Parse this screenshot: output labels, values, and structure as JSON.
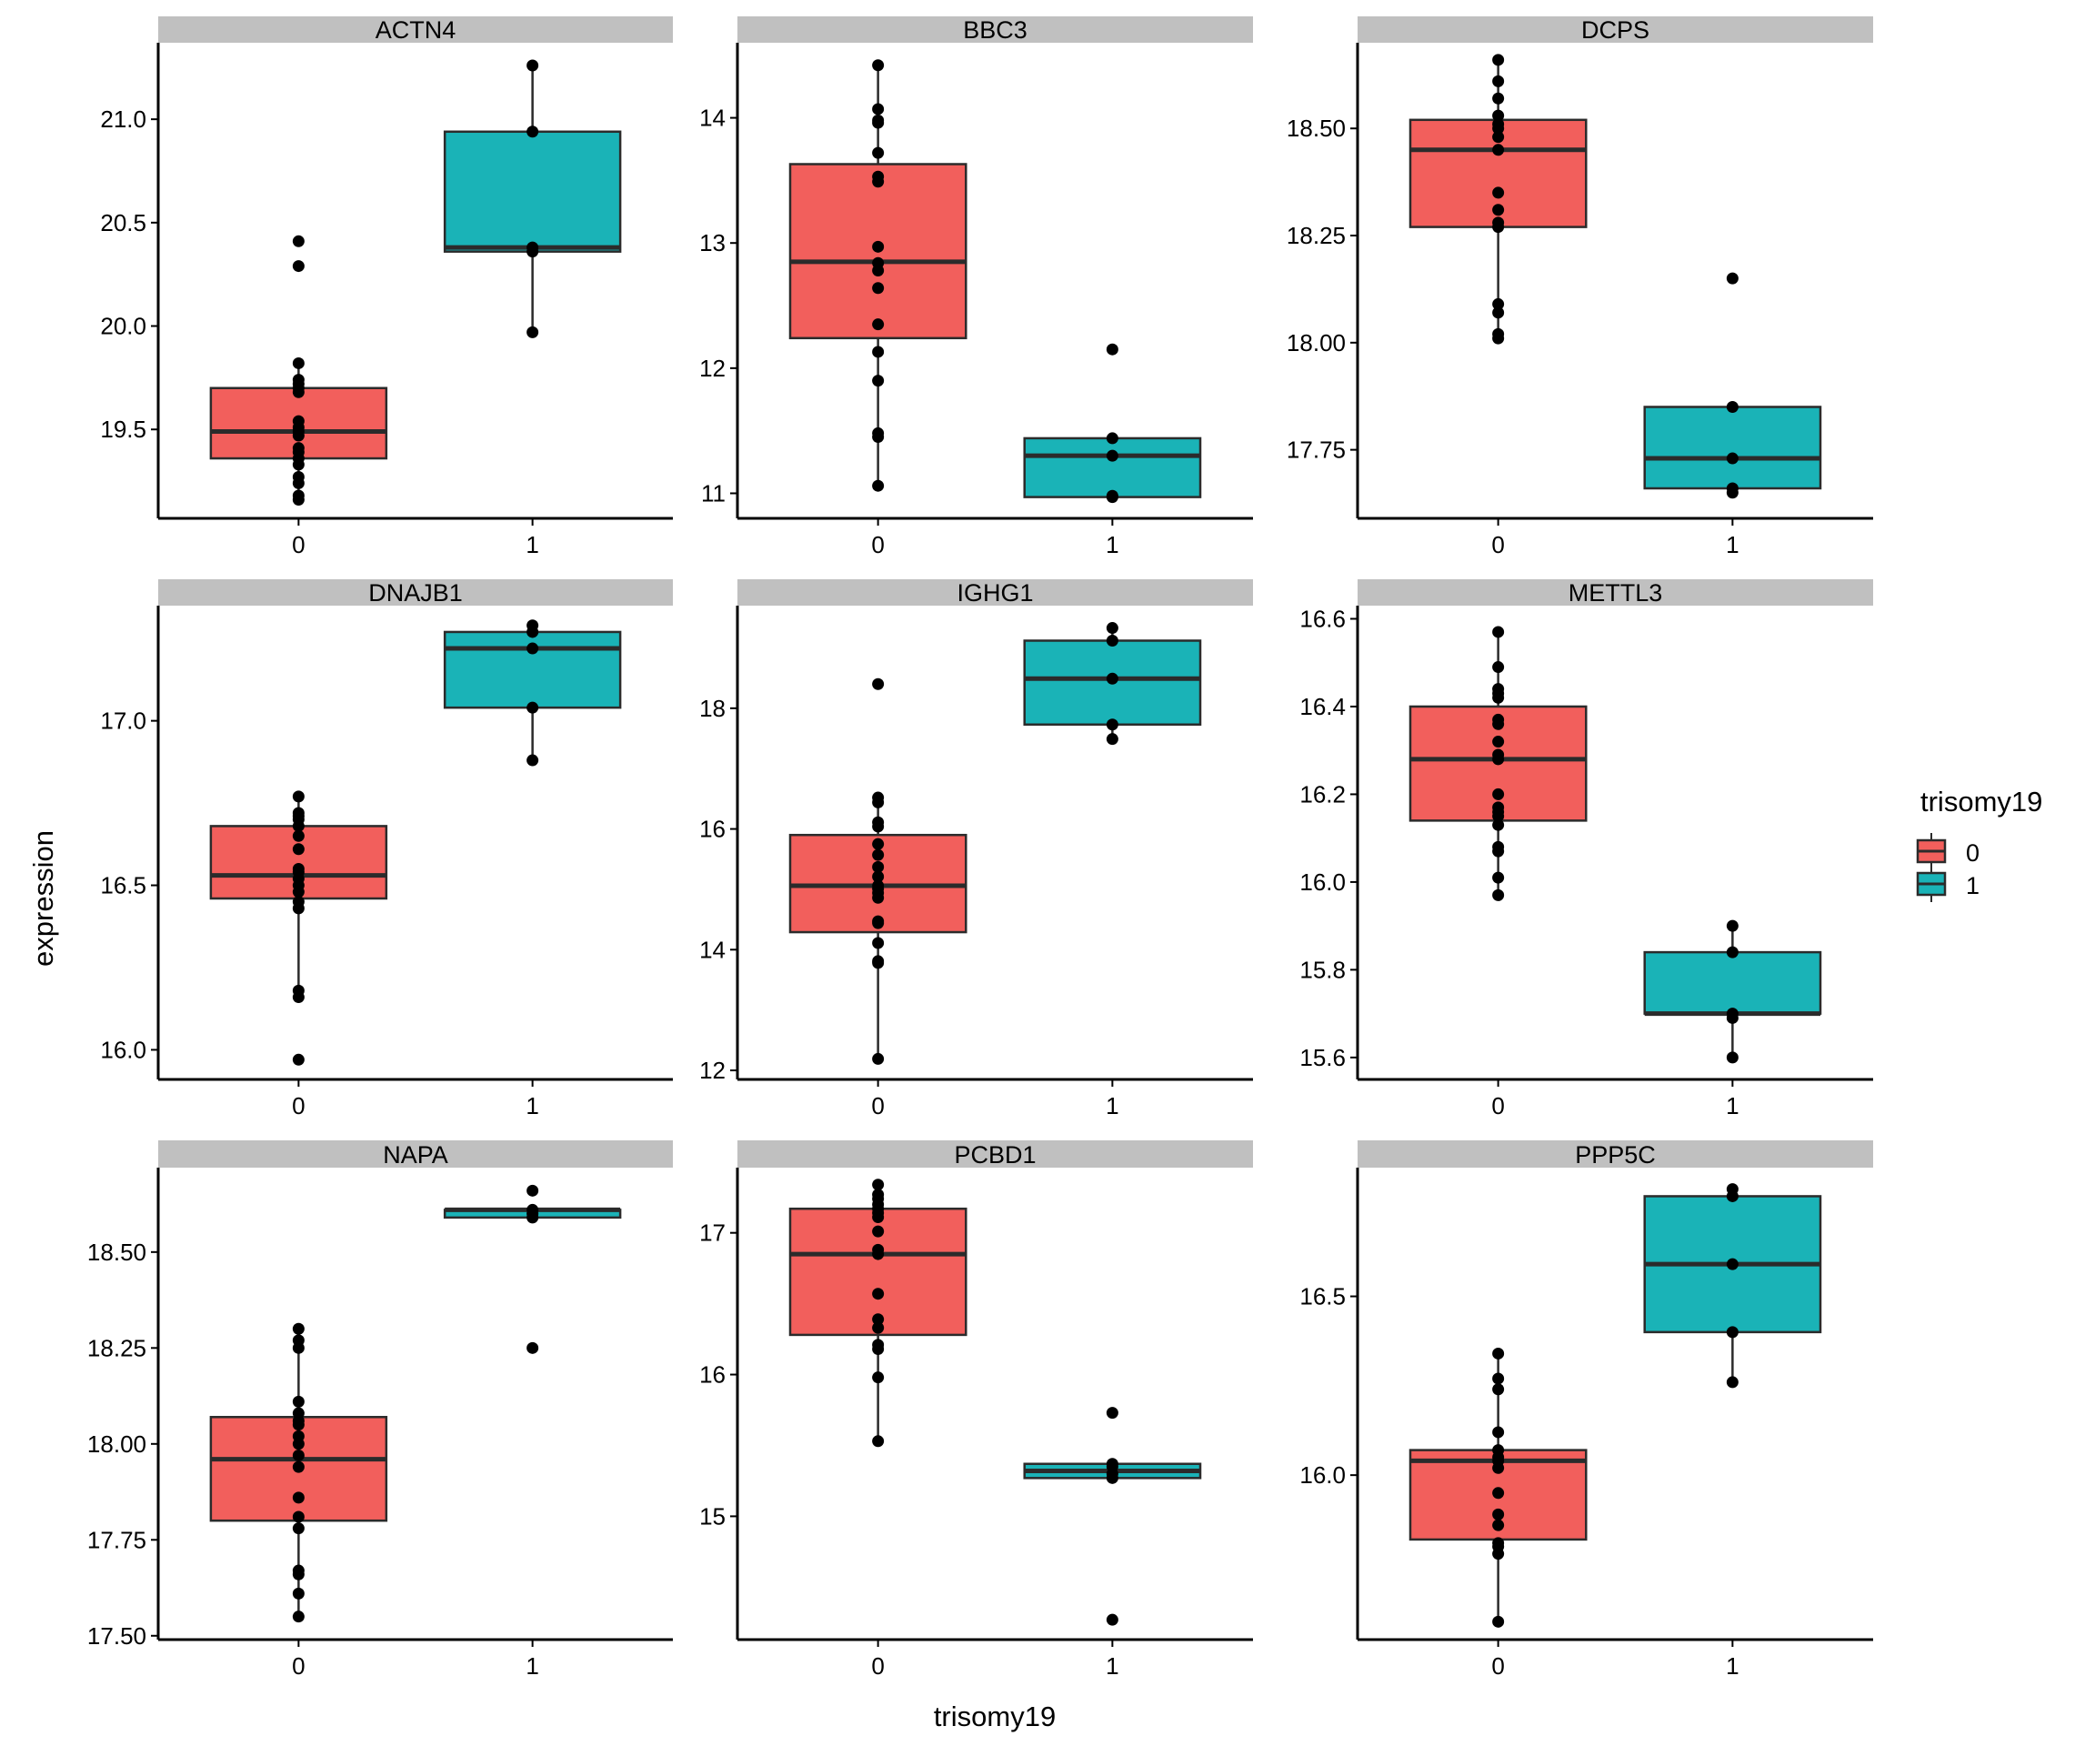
{
  "chart_data": {
    "type": "boxplot",
    "xlabel": "trisomy19",
    "ylabel": "expression",
    "categories": [
      "0",
      "1"
    ],
    "legend": {
      "title": "trisomy19",
      "placement": "right",
      "entries": [
        {
          "label": "0",
          "color": "#F8766D"
        },
        {
          "label": "1",
          "color": "#00BFC4"
        }
      ]
    },
    "colors": {
      "group0": "#F25F5C",
      "group1": "#1AB3B7",
      "outline": "#2B2B2B",
      "strip": "#C0C0C0",
      "point": "#000000"
    },
    "panels": [
      {
        "title": "ACTN4",
        "ylim": [
          19.07,
          21.37
        ],
        "yticks": [
          19.5,
          20.0,
          20.5,
          21.0
        ],
        "ytick_labels": [
          "19.5",
          "20.0",
          "20.5",
          "21.0"
        ],
        "groups": [
          {
            "category": "0",
            "box": {
              "lower_whisker": 19.16,
              "q1": 19.36,
              "median": 19.49,
              "q3": 19.7,
              "upper_whisker": 19.82
            },
            "points": [
              19.16,
              19.18,
              19.24,
              19.27,
              19.33,
              19.36,
              19.39,
              19.41,
              19.47,
              19.49,
              19.51,
              19.54,
              19.68,
              19.7,
              19.72,
              19.74,
              19.82,
              20.29,
              20.41
            ]
          },
          {
            "category": "1",
            "box": {
              "lower_whisker": 19.97,
              "q1": 20.36,
              "median": 20.38,
              "q3": 20.94,
              "upper_whisker": 21.26
            },
            "points": [
              19.97,
              20.36,
              20.38,
              20.94,
              21.26
            ]
          }
        ]
      },
      {
        "title": "BBC3",
        "ylim": [
          10.8,
          14.6
        ],
        "yticks": [
          11,
          12,
          13,
          14
        ],
        "ytick_labels": [
          "11",
          "12",
          "13",
          "14"
        ],
        "groups": [
          {
            "category": "0",
            "box": {
              "lower_whisker": 11.06,
              "q1": 12.24,
              "median": 12.85,
              "q3": 13.63,
              "upper_whisker": 14.42
            },
            "points": [
              11.06,
              11.45,
              11.48,
              11.9,
              12.13,
              12.35,
              12.64,
              12.78,
              12.84,
              12.97,
              13.49,
              13.53,
              13.72,
              13.96,
              13.98,
              14.07,
              14.42
            ]
          },
          {
            "category": "1",
            "box": {
              "lower_whisker": 10.97,
              "q1": 10.97,
              "median": 11.3,
              "q3": 11.44,
              "upper_whisker": 11.44
            },
            "points": [
              10.97,
              10.98,
              11.3,
              11.44,
              12.15
            ]
          }
        ]
      },
      {
        "title": "DCPS",
        "ylim": [
          17.59,
          18.7
        ],
        "yticks": [
          17.75,
          18.0,
          18.25,
          18.5
        ],
        "ytick_labels": [
          "17.75",
          "18.00",
          "18.25",
          "18.50"
        ],
        "groups": [
          {
            "category": "0",
            "box": {
              "lower_whisker": 18.01,
              "q1": 18.27,
              "median": 18.45,
              "q3": 18.52,
              "upper_whisker": 18.66
            },
            "points": [
              18.01,
              18.02,
              18.07,
              18.09,
              18.27,
              18.28,
              18.31,
              18.35,
              18.45,
              18.48,
              18.5,
              18.51,
              18.53,
              18.57,
              18.61,
              18.66
            ]
          },
          {
            "category": "1",
            "box": {
              "lower_whisker": 17.66,
              "q1": 17.66,
              "median": 17.73,
              "q3": 17.85,
              "upper_whisker": 17.85
            },
            "points": [
              17.65,
              17.66,
              17.73,
              17.85,
              18.15
            ]
          }
        ]
      },
      {
        "title": "DNAJB1",
        "ylim": [
          15.91,
          17.35
        ],
        "yticks": [
          16.0,
          16.5,
          17.0
        ],
        "ytick_labels": [
          "16.0",
          "16.5",
          "17.0"
        ],
        "groups": [
          {
            "category": "0",
            "box": {
              "lower_whisker": 16.16,
              "q1": 16.46,
              "median": 16.53,
              "q3": 16.68,
              "upper_whisker": 16.77
            },
            "points": [
              15.97,
              16.16,
              16.18,
              16.43,
              16.45,
              16.48,
              16.5,
              16.52,
              16.54,
              16.55,
              16.61,
              16.65,
              16.68,
              16.7,
              16.71,
              16.72,
              16.77
            ]
          },
          {
            "category": "1",
            "box": {
              "lower_whisker": 16.88,
              "q1": 17.04,
              "median": 17.22,
              "q3": 17.27,
              "upper_whisker": 17.29
            },
            "points": [
              16.88,
              17.04,
              17.22,
              17.27,
              17.29
            ]
          }
        ]
      },
      {
        "title": "IGHG1",
        "ylim": [
          11.85,
          19.7
        ],
        "yticks": [
          12,
          14,
          16,
          18
        ],
        "ytick_labels": [
          "12",
          "14",
          "16",
          "18"
        ],
        "groups": [
          {
            "category": "0",
            "box": {
              "lower_whisker": 12.19,
              "q1": 14.29,
              "median": 15.06,
              "q3": 15.9,
              "upper_whisker": 16.52
            },
            "points": [
              12.19,
              13.78,
              13.81,
              14.11,
              14.44,
              14.47,
              14.86,
              14.94,
              15.01,
              15.06,
              15.21,
              15.37,
              15.57,
              15.75,
              16.04,
              16.11,
              16.44,
              16.52,
              18.4
            ]
          },
          {
            "category": "1",
            "box": {
              "lower_whisker": 17.49,
              "q1": 17.73,
              "median": 18.49,
              "q3": 19.12,
              "upper_whisker": 19.33
            },
            "points": [
              17.49,
              17.73,
              18.49,
              19.12,
              19.33
            ]
          }
        ]
      },
      {
        "title": "METTL3",
        "ylim": [
          15.55,
          16.63
        ],
        "yticks": [
          15.6,
          15.8,
          16.0,
          16.2,
          16.4,
          16.6
        ],
        "ytick_labels": [
          "15.6",
          "15.8",
          "16.0",
          "16.2",
          "16.4",
          "16.6"
        ],
        "groups": [
          {
            "category": "0",
            "box": {
              "lower_whisker": 15.97,
              "q1": 16.14,
              "median": 16.28,
              "q3": 16.4,
              "upper_whisker": 16.57
            },
            "points": [
              15.97,
              16.01,
              16.07,
              16.08,
              16.13,
              16.15,
              16.16,
              16.17,
              16.2,
              16.28,
              16.29,
              16.32,
              16.36,
              16.37,
              16.42,
              16.43,
              16.44,
              16.49,
              16.57
            ]
          },
          {
            "category": "1",
            "box": {
              "lower_whisker": 15.6,
              "q1": 15.7,
              "median": 15.7,
              "q3": 15.84,
              "upper_whisker": 15.9
            },
            "points": [
              15.6,
              15.69,
              15.7,
              15.84,
              15.9
            ]
          }
        ]
      },
      {
        "title": "NAPA",
        "ylim": [
          17.49,
          18.72
        ],
        "yticks": [
          17.5,
          17.75,
          18.0,
          18.25,
          18.5
        ],
        "ytick_labels": [
          "17.50",
          "17.75",
          "18.00",
          "18.25",
          "18.50"
        ],
        "groups": [
          {
            "category": "0",
            "box": {
              "lower_whisker": 17.55,
              "q1": 17.8,
              "median": 17.96,
              "q3": 18.07,
              "upper_whisker": 18.3
            },
            "points": [
              17.55,
              17.61,
              17.66,
              17.67,
              17.78,
              17.81,
              17.86,
              17.94,
              17.97,
              18.0,
              18.02,
              18.05,
              18.06,
              18.08,
              18.11,
              18.25,
              18.27,
              18.3
            ]
          },
          {
            "category": "1",
            "box": {
              "lower_whisker": 18.59,
              "q1": 18.59,
              "median": 18.61,
              "q3": 18.61,
              "upper_whisker": 18.61
            },
            "points": [
              18.25,
              18.59,
              18.6,
              18.61,
              18.66
            ]
          }
        ]
      },
      {
        "title": "PCBD1",
        "ylim": [
          14.13,
          17.46
        ],
        "yticks": [
          15,
          16,
          17
        ],
        "ytick_labels": [
          "15",
          "16",
          "17"
        ],
        "groups": [
          {
            "category": "0",
            "box": {
              "lower_whisker": 15.53,
              "q1": 16.28,
              "median": 16.85,
              "q3": 17.17,
              "upper_whisker": 17.34
            },
            "points": [
              15.53,
              15.98,
              16.18,
              16.21,
              16.33,
              16.39,
              16.57,
              16.85,
              16.88,
              17.01,
              17.11,
              17.14,
              17.17,
              17.2,
              17.24,
              17.27,
              17.34
            ]
          },
          {
            "category": "1",
            "box": {
              "lower_whisker": 15.27,
              "q1": 15.27,
              "median": 15.32,
              "q3": 15.37,
              "upper_whisker": 15.37
            },
            "points": [
              14.27,
              15.27,
              15.3,
              15.35,
              15.37,
              15.73
            ]
          }
        ]
      },
      {
        "title": "PPP5C",
        "ylim": [
          15.54,
          16.86
        ],
        "yticks": [
          16.0,
          16.5
        ],
        "ytick_labels": [
          "16.0",
          "16.5"
        ],
        "groups": [
          {
            "category": "0",
            "box": {
              "lower_whisker": 15.59,
              "q1": 15.82,
              "median": 16.04,
              "q3": 16.07,
              "upper_whisker": 16.34
            },
            "points": [
              15.59,
              15.78,
              15.8,
              15.81,
              15.86,
              15.89,
              15.95,
              16.02,
              16.04,
              16.05,
              16.07,
              16.12,
              16.24,
              16.27,
              16.34
            ]
          },
          {
            "category": "1",
            "box": {
              "lower_whisker": 16.26,
              "q1": 16.4,
              "median": 16.59,
              "q3": 16.78,
              "upper_whisker": 16.8
            },
            "points": [
              16.26,
              16.4,
              16.59,
              16.78,
              16.8
            ]
          }
        ]
      }
    ]
  }
}
